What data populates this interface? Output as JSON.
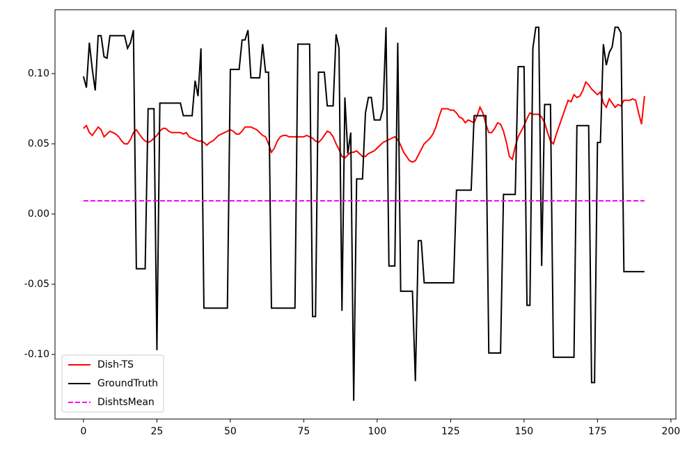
{
  "chart_data": {
    "type": "line",
    "x": [
      0,
      1,
      2,
      3,
      4,
      5,
      6,
      7,
      8,
      9,
      10,
      11,
      12,
      13,
      14,
      15,
      16,
      17,
      18,
      19,
      20,
      21,
      22,
      23,
      24,
      25,
      26,
      27,
      28,
      29,
      30,
      31,
      32,
      33,
      34,
      35,
      36,
      37,
      38,
      39,
      40,
      41,
      42,
      43,
      44,
      45,
      46,
      47,
      48,
      49,
      50,
      51,
      52,
      53,
      54,
      55,
      56,
      57,
      58,
      59,
      60,
      61,
      62,
      63,
      64,
      65,
      66,
      67,
      68,
      69,
      70,
      71,
      72,
      73,
      74,
      75,
      76,
      77,
      78,
      79,
      80,
      81,
      82,
      83,
      84,
      85,
      86,
      87,
      88,
      89,
      90,
      91,
      92,
      93,
      94,
      95,
      96,
      97,
      98,
      99,
      100,
      101,
      102,
      103,
      104,
      105,
      106,
      107,
      108,
      109,
      110,
      111,
      112,
      113,
      114,
      115,
      116,
      117,
      118,
      119,
      120,
      121,
      122,
      123,
      124,
      125,
      126,
      127,
      128,
      129,
      130,
      131,
      132,
      133,
      134,
      135,
      136,
      137,
      138,
      139,
      140,
      141,
      142,
      143,
      144,
      145,
      146,
      147,
      148,
      149,
      150,
      151,
      152,
      153,
      154,
      155,
      156,
      157,
      158,
      159,
      160,
      161,
      162,
      163,
      164,
      165,
      166,
      167,
      168,
      169,
      170,
      171,
      172,
      173,
      174,
      175,
      176,
      177,
      178,
      179,
      180,
      181,
      182,
      183,
      184,
      185,
      186,
      187,
      188,
      189,
      190,
      191
    ],
    "series": [
      {
        "name": "Dish-TS",
        "color": "#ff0000",
        "dash": false,
        "values": [
          0.061,
          0.063,
          0.058,
          0.056,
          0.059,
          0.062,
          0.06,
          0.055,
          0.057,
          0.059,
          0.058,
          0.057,
          0.055,
          0.052,
          0.05,
          0.05,
          0.053,
          0.058,
          0.06,
          0.057,
          0.054,
          0.052,
          0.051,
          0.052,
          0.054,
          0.056,
          0.059,
          0.061,
          0.061,
          0.059,
          0.058,
          0.058,
          0.058,
          0.058,
          0.057,
          0.058,
          0.055,
          0.054,
          0.053,
          0.052,
          0.052,
          0.051,
          0.049,
          0.051,
          0.052,
          0.054,
          0.056,
          0.057,
          0.058,
          0.059,
          0.06,
          0.059,
          0.057,
          0.057,
          0.059,
          0.062,
          0.062,
          0.062,
          0.061,
          0.06,
          0.058,
          0.056,
          0.055,
          0.05,
          0.044,
          0.047,
          0.052,
          0.055,
          0.056,
          0.056,
          0.055,
          0.055,
          0.055,
          0.055,
          0.055,
          0.055,
          0.056,
          0.055,
          0.054,
          0.052,
          0.051,
          0.053,
          0.056,
          0.059,
          0.058,
          0.055,
          0.05,
          0.046,
          0.041,
          0.04,
          0.042,
          0.044,
          0.044,
          0.045,
          0.043,
          0.041,
          0.041,
          0.043,
          0.044,
          0.045,
          0.047,
          0.049,
          0.051,
          0.052,
          0.053,
          0.054,
          0.055,
          0.053,
          0.049,
          0.044,
          0.041,
          0.038,
          0.037,
          0.038,
          0.042,
          0.046,
          0.05,
          0.052,
          0.054,
          0.057,
          0.062,
          0.069,
          0.075,
          0.075,
          0.075,
          0.074,
          0.074,
          0.072,
          0.069,
          0.068,
          0.065,
          0.067,
          0.066,
          0.065,
          0.07,
          0.076,
          0.072,
          0.064,
          0.058,
          0.058,
          0.061,
          0.065,
          0.064,
          0.059,
          0.051,
          0.041,
          0.039,
          0.048,
          0.055,
          0.059,
          0.063,
          0.068,
          0.072,
          0.071,
          0.071,
          0.071,
          0.069,
          0.065,
          0.058,
          0.052,
          0.05,
          0.057,
          0.063,
          0.069,
          0.075,
          0.081,
          0.08,
          0.085,
          0.083,
          0.084,
          0.088,
          0.094,
          0.092,
          0.089,
          0.087,
          0.085,
          0.087,
          0.079,
          0.076,
          0.082,
          0.079,
          0.076,
          0.078,
          0.077,
          0.081,
          0.081,
          0.081,
          0.082,
          0.081,
          0.072,
          0.064,
          0.084
        ]
      },
      {
        "name": "GroundTruth",
        "color": "#000000",
        "dash": false,
        "values": [
          0.098,
          0.09,
          0.122,
          0.103,
          0.088,
          0.127,
          0.127,
          0.112,
          0.111,
          0.127,
          0.127,
          0.127,
          0.127,
          0.127,
          0.127,
          0.118,
          0.122,
          0.131,
          -0.039,
          -0.039,
          -0.039,
          -0.039,
          0.075,
          0.075,
          0.075,
          -0.097,
          0.079,
          0.079,
          0.079,
          0.079,
          0.079,
          0.079,
          0.079,
          0.079,
          0.07,
          0.07,
          0.07,
          0.07,
          0.095,
          0.084,
          0.118,
          -0.067,
          -0.067,
          -0.067,
          -0.067,
          -0.067,
          -0.067,
          -0.067,
          -0.067,
          -0.067,
          0.103,
          0.103,
          0.103,
          0.103,
          0.124,
          0.124,
          0.131,
          0.097,
          0.097,
          0.097,
          0.097,
          0.121,
          0.101,
          0.101,
          -0.067,
          -0.067,
          -0.067,
          -0.067,
          -0.067,
          -0.067,
          -0.067,
          -0.067,
          -0.067,
          0.121,
          0.121,
          0.121,
          0.121,
          0.121,
          -0.073,
          -0.073,
          0.101,
          0.101,
          0.101,
          0.077,
          0.077,
          0.077,
          0.128,
          0.118,
          -0.069,
          0.083,
          0.043,
          0.058,
          -0.133,
          0.025,
          0.025,
          0.025,
          0.072,
          0.083,
          0.083,
          0.067,
          0.067,
          0.067,
          0.075,
          0.133,
          -0.037,
          -0.037,
          -0.037,
          0.122,
          -0.055,
          -0.055,
          -0.055,
          -0.055,
          -0.055,
          -0.119,
          -0.019,
          -0.019,
          -0.049,
          -0.049,
          -0.049,
          -0.049,
          -0.049,
          -0.049,
          -0.049,
          -0.049,
          -0.049,
          -0.049,
          -0.049,
          0.017,
          0.017,
          0.017,
          0.017,
          0.017,
          0.017,
          0.07,
          0.07,
          0.07,
          0.07,
          0.07,
          -0.099,
          -0.099,
          -0.099,
          -0.099,
          -0.099,
          0.014,
          0.014,
          0.014,
          0.014,
          0.014,
          0.105,
          0.105,
          0.105,
          -0.065,
          -0.065,
          0.118,
          0.133,
          0.133,
          -0.037,
          0.078,
          0.078,
          0.078,
          -0.102,
          -0.102,
          -0.102,
          -0.102,
          -0.102,
          -0.102,
          -0.102,
          -0.102,
          0.063,
          0.063,
          0.063,
          0.063,
          0.063,
          -0.12,
          -0.12,
          0.051,
          0.051,
          0.121,
          0.106,
          0.115,
          0.119,
          0.133,
          0.133,
          0.129,
          -0.041,
          -0.041,
          -0.041,
          -0.041,
          -0.041,
          -0.041,
          -0.041,
          -0.041
        ]
      },
      {
        "name": "DishtsMean",
        "color": "#ff00ff",
        "dash": true,
        "x": [
          0,
          191
        ],
        "values": [
          0.0094,
          0.0094
        ]
      }
    ],
    "xlim": [
      -9.7,
      201.7
    ],
    "ylim": [
      -0.146,
      0.1455
    ],
    "xticks": [
      0,
      25,
      50,
      75,
      100,
      125,
      150,
      175,
      200
    ],
    "yticks": [
      {
        "value": -0.1,
        "label": "-0.10"
      },
      {
        "value": -0.05,
        "label": "-0.05"
      },
      {
        "value": 0,
        "label": "0.00"
      },
      {
        "value": 0.05,
        "label": "0.05"
      },
      {
        "value": 0.1,
        "label": "0.10"
      }
    ],
    "grid": false,
    "legend": "lower left"
  }
}
